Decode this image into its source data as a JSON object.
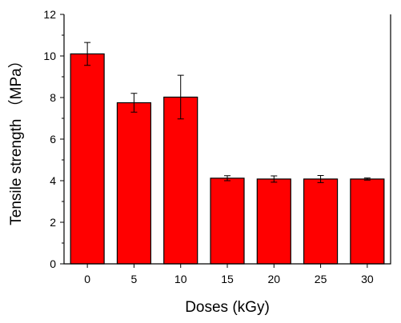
{
  "chart_data": {
    "type": "bar",
    "categories": [
      "0",
      "5",
      "10",
      "15",
      "20",
      "25",
      "30"
    ],
    "values": [
      10.1,
      7.75,
      8.02,
      4.12,
      4.08,
      4.08,
      4.08
    ],
    "errors": [
      0.55,
      0.45,
      1.05,
      0.12,
      0.15,
      0.17,
      0.05
    ],
    "title": "",
    "xlabel": "Doses (kGy)",
    "ylabel": "Tensile strength （MPa）",
    "ylim": [
      0,
      12
    ],
    "yticks": [
      0,
      2,
      4,
      6,
      8,
      10,
      12
    ],
    "grid": false,
    "bar_color": "#ff0000",
    "edge_color": "#000000"
  }
}
